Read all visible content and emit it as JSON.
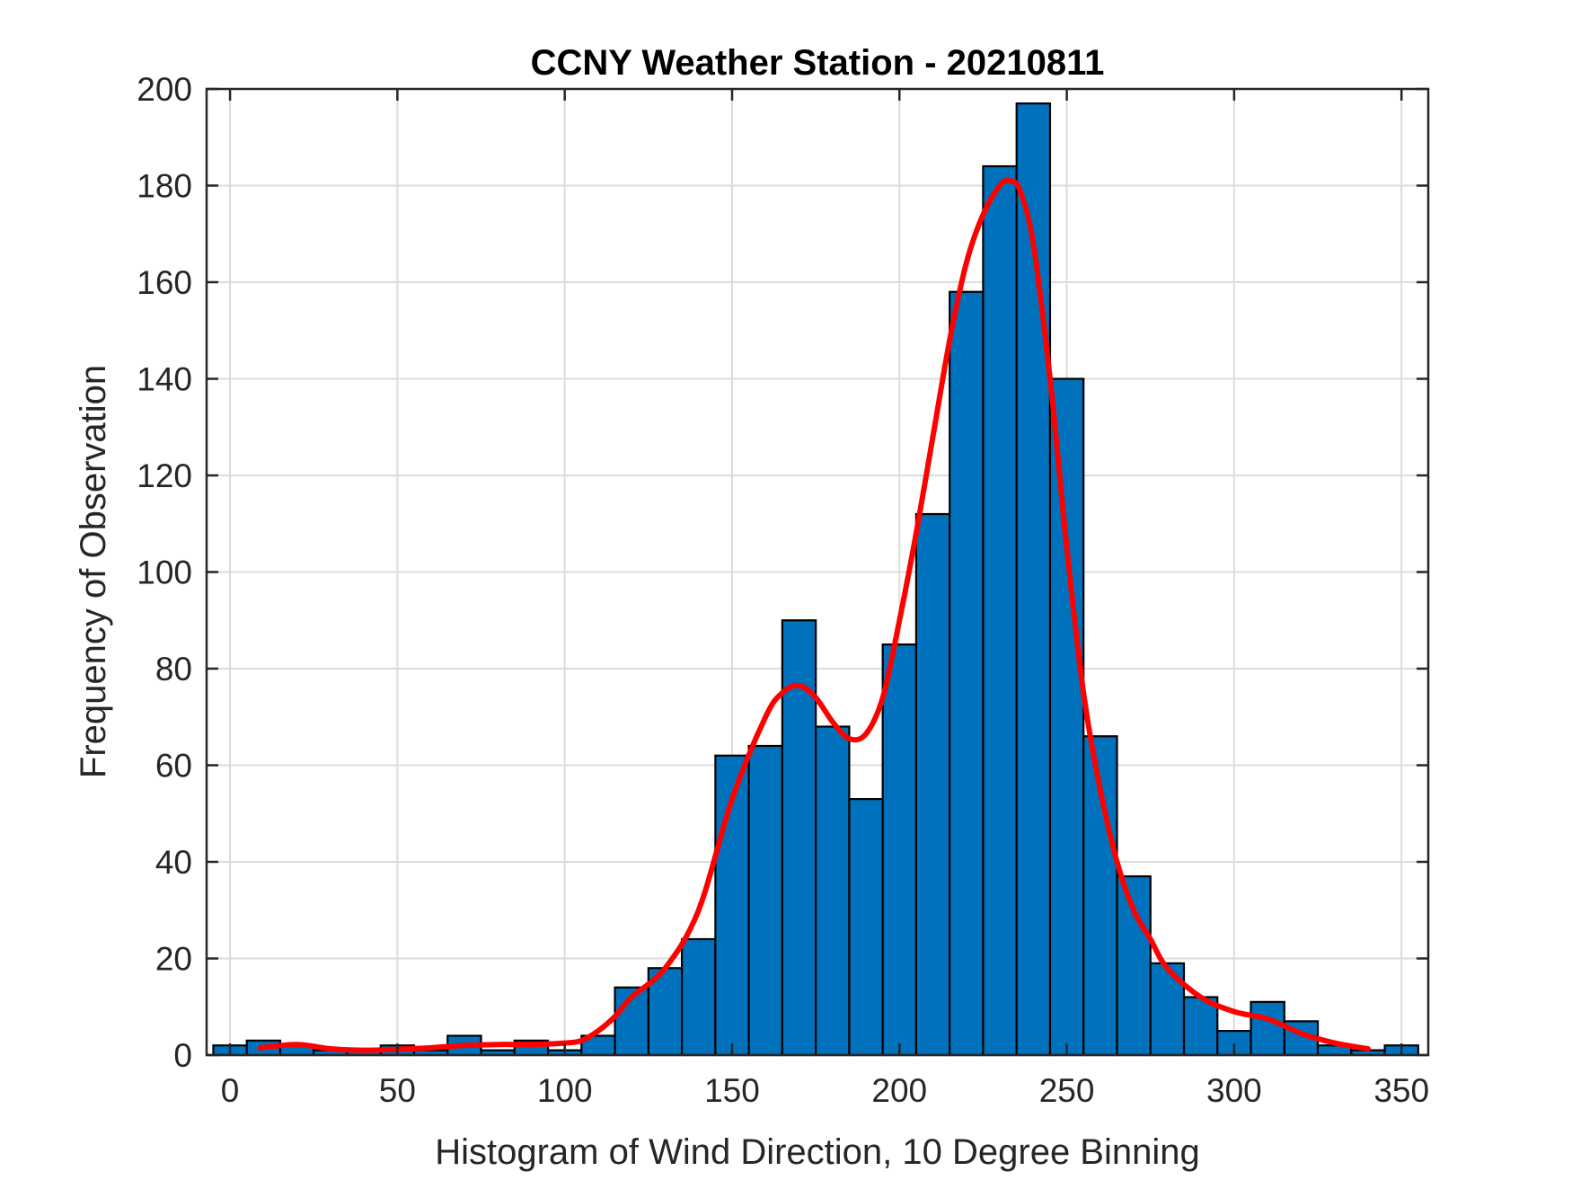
{
  "chart_data": {
    "type": "bar",
    "title": "CCNY Weather Station - 20210811",
    "xlabel": "Histogram of Wind Direction, 10 Degree Binning",
    "ylabel": "Frequency of Observation",
    "xlim": [
      -7,
      358
    ],
    "ylim": [
      0,
      200
    ],
    "xticks": [
      0,
      50,
      100,
      150,
      200,
      250,
      300,
      350
    ],
    "yticks": [
      0,
      20,
      40,
      60,
      80,
      100,
      120,
      140,
      160,
      180,
      200
    ],
    "grid": true,
    "bin_width": 10,
    "bins": [
      {
        "start": 0,
        "count": 2
      },
      {
        "start": 10,
        "count": 3
      },
      {
        "start": 20,
        "count": 2
      },
      {
        "start": 30,
        "count": 1
      },
      {
        "start": 40,
        "count": 1
      },
      {
        "start": 50,
        "count": 2
      },
      {
        "start": 60,
        "count": 1
      },
      {
        "start": 70,
        "count": 4
      },
      {
        "start": 80,
        "count": 1
      },
      {
        "start": 90,
        "count": 3
      },
      {
        "start": 100,
        "count": 1
      },
      {
        "start": 110,
        "count": 4
      },
      {
        "start": 120,
        "count": 14
      },
      {
        "start": 130,
        "count": 18
      },
      {
        "start": 140,
        "count": 24
      },
      {
        "start": 150,
        "count": 62
      },
      {
        "start": 160,
        "count": 64
      },
      {
        "start": 170,
        "count": 90
      },
      {
        "start": 180,
        "count": 68
      },
      {
        "start": 190,
        "count": 53
      },
      {
        "start": 200,
        "count": 85
      },
      {
        "start": 210,
        "count": 112
      },
      {
        "start": 220,
        "count": 158
      },
      {
        "start": 230,
        "count": 184
      },
      {
        "start": 240,
        "count": 197
      },
      {
        "start": 250,
        "count": 140
      },
      {
        "start": 260,
        "count": 66
      },
      {
        "start": 270,
        "count": 37
      },
      {
        "start": 280,
        "count": 19
      },
      {
        "start": 290,
        "count": 12
      },
      {
        "start": 300,
        "count": 5
      },
      {
        "start": 310,
        "count": 11
      },
      {
        "start": 320,
        "count": 7
      },
      {
        "start": 330,
        "count": 2
      },
      {
        "start": 340,
        "count": 1
      },
      {
        "start": 350,
        "count": 2
      }
    ],
    "fit_curve": {
      "x": [
        9,
        20,
        30,
        40,
        50,
        60,
        70,
        80,
        90,
        100,
        105,
        110,
        115,
        120,
        130,
        140,
        150,
        160,
        165,
        170,
        175,
        180,
        185,
        190,
        195,
        200,
        205,
        210,
        215,
        220,
        225,
        230,
        233,
        236,
        240,
        245,
        250,
        255,
        260,
        265,
        270,
        275,
        280,
        290,
        300,
        310,
        320,
        330,
        340
      ],
      "y": [
        1.5,
        2.2,
        1.3,
        1.0,
        1.2,
        1.5,
        2.0,
        2.2,
        2.2,
        2.5,
        3.0,
        5.0,
        8.0,
        12.0,
        18.0,
        30.0,
        53.0,
        70.0,
        75.0,
        76.5,
        74.0,
        69.0,
        65.5,
        66.5,
        74.0,
        90.0,
        108.0,
        128.0,
        148.0,
        164.0,
        174.0,
        180.0,
        181.0,
        179.0,
        168.0,
        140.0,
        105.0,
        75.0,
        55.0,
        40.0,
        30.0,
        24.0,
        18.0,
        12.0,
        9.0,
        7.5,
        4.5,
        2.5,
        1.3
      ],
      "color": "#ff0000"
    },
    "bar_color": "#0072bd",
    "bar_edge_color": "#000000"
  }
}
